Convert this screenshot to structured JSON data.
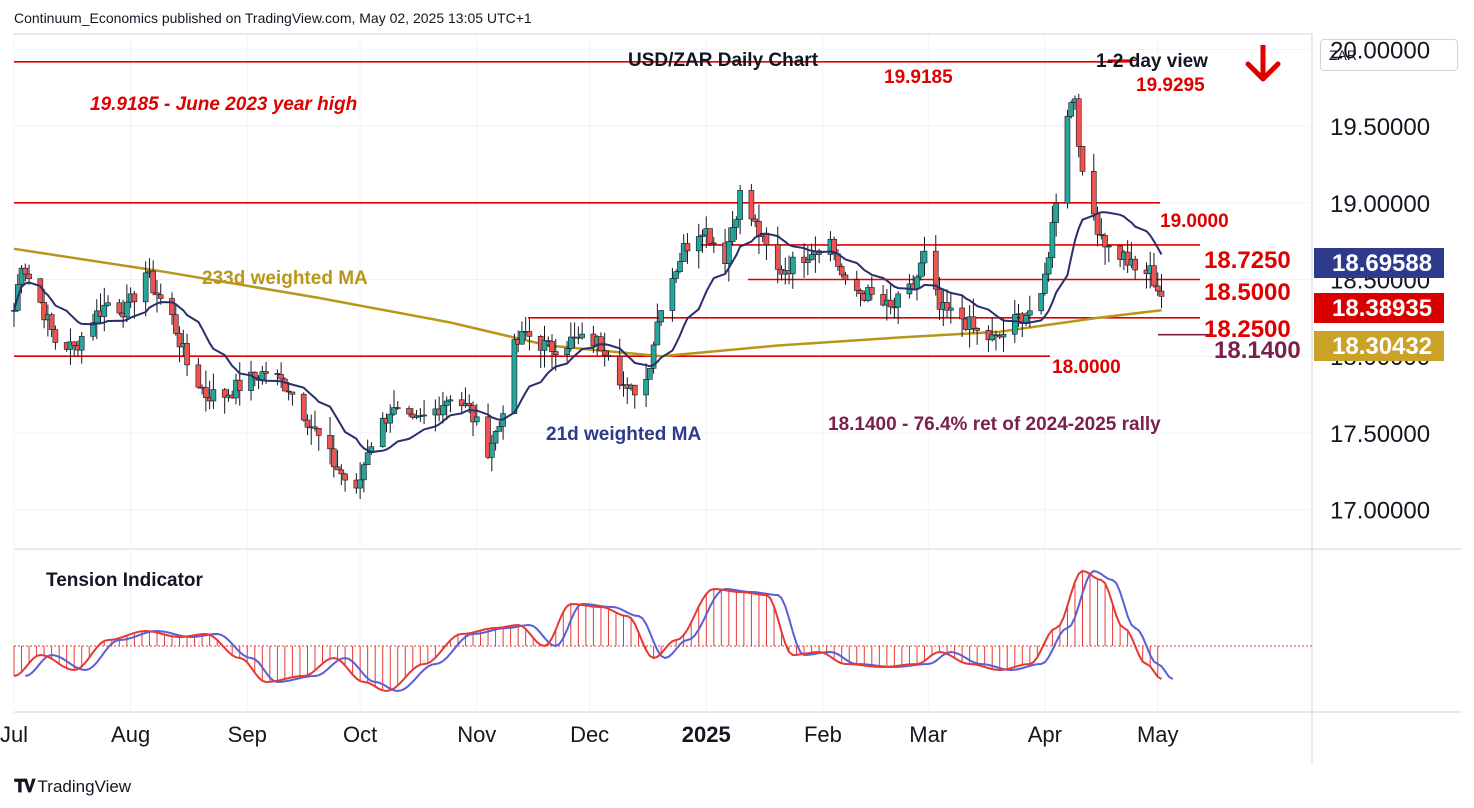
{
  "publisher": "Continuum_Economics published on TradingView.com, May 02, 2025 13:05 UTC+1",
  "symbol": "ZAR",
  "branding": "TradingView",
  "annotations": {
    "chart_title": "USD/ZAR Daily Chart",
    "view": "1-2 day view",
    "high_2023": "19.9185 - June 2023 year high",
    "high_2023_value": "19.9185",
    "recent_high": "19.9295",
    "level_19000": "19.0000",
    "level_18725": "18.7250",
    "level_18500": "18.5000",
    "level_18250": "18.2500",
    "level_18140": "18.1400",
    "level_18000": "18.0000",
    "ret_note": "18.1400 - 76.4% ret of 2024-2025 rally",
    "ma233_label": "233d weighted MA",
    "ma21_label": "21d weighted MA",
    "tension_label": "Tension Indicator",
    "direction": "down"
  },
  "price_labels": {
    "ma21": "18.69588",
    "last": "18.38935",
    "ma233": "18.30432"
  },
  "colors": {
    "bull": "#26a69a",
    "bear": "#ef5350",
    "level_line": "#e00000",
    "ma21": "#2a2e6b",
    "ma233": "#b8961a",
    "ret_line": "#7b1f4b",
    "label_ma21": "#2e3a8c",
    "label_last": "#d80000",
    "label_ma233": "#c9a227",
    "tension_fast": "#e53935",
    "tension_slow": "#5b5fd6"
  },
  "chart_data": [
    {
      "type": "candlestick",
      "title": "USD/ZAR Daily Chart",
      "y_axis": {
        "ticks": [
          "20.00000",
          "19.50000",
          "19.00000",
          "18.50000",
          "18.00000",
          "17.50000",
          "17.00000"
        ],
        "ylim": [
          16.75,
          20.1
        ]
      },
      "x_axis": {
        "ticks": [
          "Jul",
          "Aug",
          "Sep",
          "Oct",
          "Nov",
          "Dec",
          "2025",
          "Feb",
          "Mar",
          "Apr",
          "May"
        ],
        "range": [
          "2024-07-01",
          "2025-06-11"
        ]
      },
      "horizontal_levels": [
        19.9185,
        19.0,
        18.725,
        18.5,
        18.25,
        18.14,
        18.0
      ],
      "approx_close_path": [
        [
          "2024-07-01",
          18.3
        ],
        [
          "2024-07-03",
          18.62
        ],
        [
          "2024-07-08",
          18.35
        ],
        [
          "2024-07-12",
          18.1
        ],
        [
          "2024-07-17",
          18.05
        ],
        [
          "2024-07-22",
          18.25
        ],
        [
          "2024-07-26",
          18.35
        ],
        [
          "2024-07-31",
          18.3
        ],
        [
          "2024-08-05",
          18.55
        ],
        [
          "2024-08-07",
          18.45
        ],
        [
          "2024-08-12",
          18.25
        ],
        [
          "2024-08-16",
          17.95
        ],
        [
          "2024-08-21",
          17.75
        ],
        [
          "2024-08-26",
          17.75
        ],
        [
          "2024-09-02",
          17.85
        ],
        [
          "2024-09-06",
          17.9
        ],
        [
          "2024-09-12",
          17.8
        ],
        [
          "2024-09-18",
          17.55
        ],
        [
          "2024-09-24",
          17.3
        ],
        [
          "2024-09-30",
          17.1
        ],
        [
          "2024-10-03",
          17.4
        ],
        [
          "2024-10-09",
          17.65
        ],
        [
          "2024-10-15",
          17.55
        ],
        [
          "2024-10-21",
          17.65
        ],
        [
          "2024-10-25",
          17.75
        ],
        [
          "2024-10-30",
          17.65
        ],
        [
          "2024-11-04",
          17.4
        ],
        [
          "2024-11-07",
          17.55
        ],
        [
          "2024-11-11",
          18.05
        ],
        [
          "2024-11-14",
          18.15
        ],
        [
          "2024-11-20",
          18.05
        ],
        [
          "2024-11-26",
          18.1
        ],
        [
          "2024-12-02",
          18.1
        ],
        [
          "2024-12-06",
          18.05
        ],
        [
          "2024-12-11",
          17.75
        ],
        [
          "2024-12-16",
          17.85
        ],
        [
          "2024-12-20",
          18.35
        ],
        [
          "2024-12-26",
          18.7
        ],
        [
          "2024-12-31",
          18.85
        ],
        [
          "2025-01-06",
          18.65
        ],
        [
          "2025-01-10",
          19.05
        ],
        [
          "2025-01-14",
          18.85
        ],
        [
          "2025-01-20",
          18.55
        ],
        [
          "2025-01-24",
          18.6
        ],
        [
          "2025-01-29",
          18.7
        ],
        [
          "2025-02-03",
          18.75
        ],
        [
          "2025-02-07",
          18.45
        ],
        [
          "2025-02-13",
          18.4
        ],
        [
          "2025-02-19",
          18.3
        ],
        [
          "2025-02-25",
          18.45
        ],
        [
          "2025-02-28",
          18.65
        ],
        [
          "2025-03-04",
          18.3
        ],
        [
          "2025-03-10",
          18.25
        ],
        [
          "2025-03-14",
          18.15
        ],
        [
          "2025-03-19",
          18.1
        ],
        [
          "2025-03-25",
          18.25
        ],
        [
          "2025-03-31",
          18.35
        ],
        [
          "2025-04-03",
          18.85
        ],
        [
          "2025-04-07",
          19.6
        ],
        [
          "2025-04-09",
          19.7
        ],
        [
          "2025-04-11",
          19.15
        ],
        [
          "2025-04-15",
          18.85
        ],
        [
          "2025-04-18",
          18.7
        ],
        [
          "2025-04-22",
          18.65
        ],
        [
          "2025-04-25",
          18.55
        ],
        [
          "2025-04-29",
          18.55
        ],
        [
          "2025-05-02",
          18.39
        ]
      ],
      "series": [
        {
          "name": "21d weighted MA",
          "last": 18.69588
        },
        {
          "name": "233d weighted MA",
          "last": 18.30432
        }
      ]
    },
    {
      "type": "area",
      "title": "Tension Indicator",
      "x_axis": {
        "ticks": [
          "Jul",
          "Aug",
          "Sep",
          "Oct",
          "Nov",
          "Dec",
          "2025",
          "Feb",
          "Mar",
          "Apr",
          "May"
        ]
      },
      "approx_values": [
        [
          "2024-07-01",
          -0.5
        ],
        [
          "2024-07-08",
          -0.15
        ],
        [
          "2024-07-17",
          -0.4
        ],
        [
          "2024-07-26",
          0.1
        ],
        [
          "2024-08-05",
          0.25
        ],
        [
          "2024-08-14",
          0.15
        ],
        [
          "2024-08-21",
          0.2
        ],
        [
          "2024-08-30",
          -0.2
        ],
        [
          "2024-09-06",
          -0.6
        ],
        [
          "2024-09-16",
          -0.5
        ],
        [
          "2024-09-24",
          -0.2
        ],
        [
          "2024-10-02",
          -0.6
        ],
        [
          "2024-10-08",
          -0.75
        ],
        [
          "2024-10-18",
          -0.3
        ],
        [
          "2024-10-28",
          0.2
        ],
        [
          "2024-11-06",
          0.3
        ],
        [
          "2024-11-12",
          0.35
        ],
        [
          "2024-11-19",
          0.0
        ],
        [
          "2024-11-26",
          0.7
        ],
        [
          "2024-12-04",
          0.65
        ],
        [
          "2024-12-11",
          0.5
        ],
        [
          "2024-12-18",
          -0.2
        ],
        [
          "2024-12-24",
          0.1
        ],
        [
          "2025-01-03",
          0.95
        ],
        [
          "2025-01-10",
          0.9
        ],
        [
          "2025-01-17",
          0.85
        ],
        [
          "2025-01-24",
          -0.15
        ],
        [
          "2025-01-31",
          -0.1
        ],
        [
          "2025-02-07",
          -0.3
        ],
        [
          "2025-02-17",
          -0.35
        ],
        [
          "2025-02-26",
          -0.3
        ],
        [
          "2025-03-04",
          -0.1
        ],
        [
          "2025-03-12",
          -0.3
        ],
        [
          "2025-03-20",
          -0.4
        ],
        [
          "2025-03-28",
          -0.3
        ],
        [
          "2025-04-04",
          0.3
        ],
        [
          "2025-04-11",
          1.25
        ],
        [
          "2025-04-16",
          1.1
        ],
        [
          "2025-04-22",
          0.3
        ],
        [
          "2025-04-28",
          -0.3
        ],
        [
          "2025-05-02",
          -0.55
        ]
      ]
    }
  ]
}
